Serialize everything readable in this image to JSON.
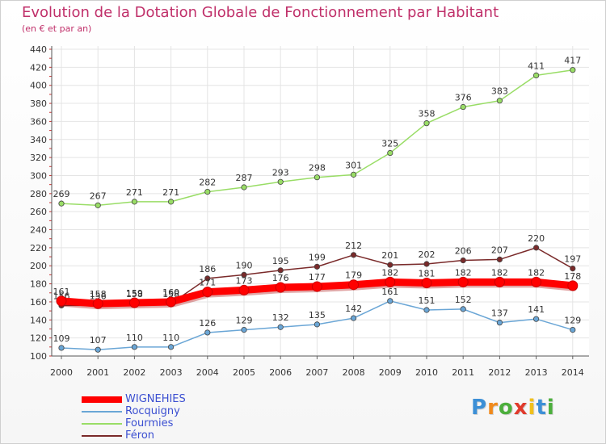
{
  "title": "Evolution de la Dotation Globale de Fonctionnement par Habitant",
  "subtitle": "(en € et par an)",
  "logo": {
    "letters": [
      "P",
      "r",
      "o",
      "x",
      "i",
      "t",
      "i"
    ],
    "colors": [
      "#3c8fd6",
      "#f08a1c",
      "#4caf3c",
      "#e03a2c",
      "#f0c01c",
      "#3c8fd6",
      "#4caf3c"
    ]
  },
  "chart_data": {
    "type": "line",
    "x": [
      "2000",
      "2001",
      "2002",
      "2003",
      "2004",
      "2005",
      "2006",
      "2007",
      "2008",
      "2009",
      "2010",
      "2011",
      "2012",
      "2013",
      "2014"
    ],
    "ylim": [
      100,
      440
    ],
    "yticks": [
      "100",
      "120",
      "140",
      "160",
      "180",
      "200",
      "220",
      "240",
      "260",
      "280",
      "300",
      "320",
      "340",
      "360",
      "380",
      "400",
      "420",
      "440"
    ],
    "series": [
      {
        "name": "WIGNEHIES",
        "color": "#ff0000",
        "values": [
          161,
          158,
          159,
          160,
          171,
          173,
          176,
          177,
          179,
          182,
          181,
          182,
          182,
          182,
          178
        ]
      },
      {
        "name": "Rocquigny",
        "color": "#6aa6d6",
        "values": [
          109,
          107,
          110,
          110,
          126,
          129,
          132,
          135,
          142,
          161,
          151,
          152,
          137,
          141,
          129
        ]
      },
      {
        "name": "Fourmies",
        "color": "#99dd66",
        "values": [
          269,
          267,
          271,
          271,
          282,
          287,
          293,
          298,
          301,
          325,
          358,
          376,
          383,
          411,
          417
        ]
      },
      {
        "name": "Féron",
        "color": "#7a2a2a",
        "values": [
          156,
          156,
          158,
          158,
          186,
          190,
          195,
          199,
          212,
          201,
          202,
          206,
          207,
          220,
          197
        ]
      }
    ],
    "legend": "bottom-left"
  }
}
